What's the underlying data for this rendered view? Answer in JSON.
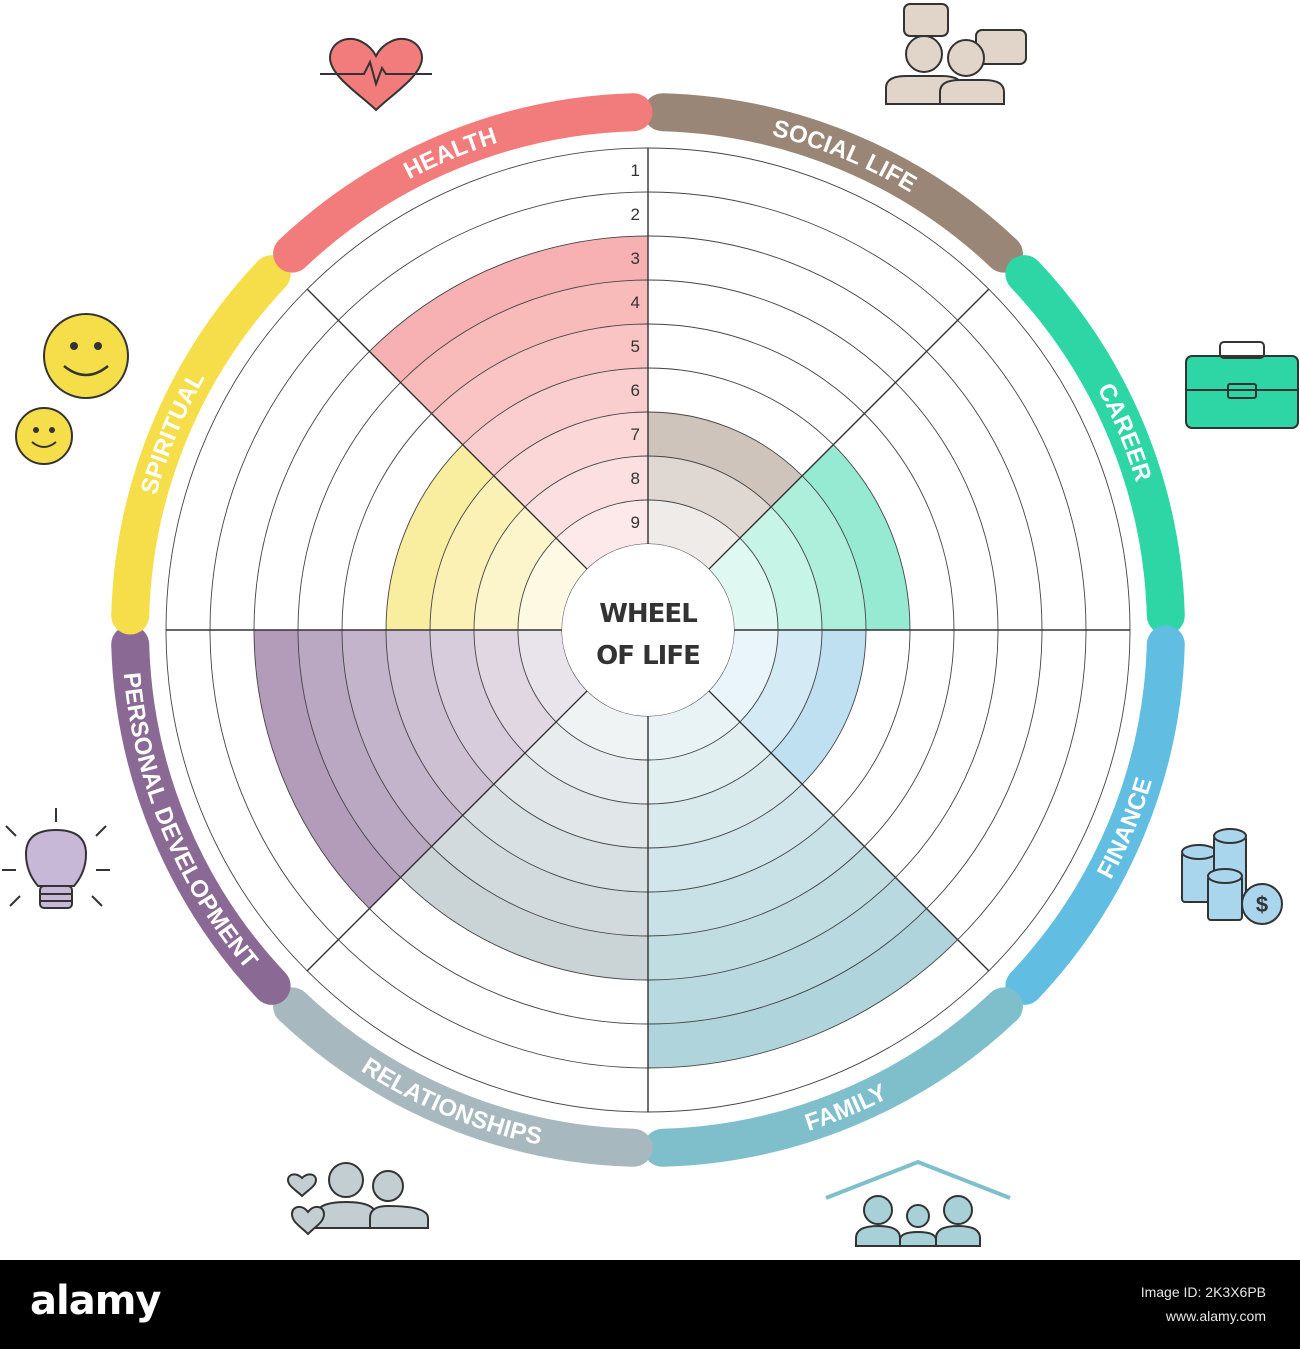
{
  "center_title": [
    "WHEEL",
    "OF LIFE"
  ],
  "scale_numbers": [
    "1",
    "2",
    "3",
    "4",
    "5",
    "6",
    "7",
    "8",
    "9"
  ],
  "segments": [
    {
      "label": "SOCIAL LIFE",
      "color": "#9a8676",
      "fill": "#bdb0a5",
      "score": 7,
      "icon": "people-chat-icon"
    },
    {
      "label": "CAREER",
      "color": "#2ed6a6",
      "fill": "#7ee5c8",
      "score": 6,
      "icon": "briefcase-icon"
    },
    {
      "label": "FINANCE",
      "color": "#62bde3",
      "fill": "#a9d6ec",
      "score": 7,
      "icon": "coins-dollar-icon"
    },
    {
      "label": "FAMILY",
      "color": "#7fbfcc",
      "fill": "#a8d0d7",
      "score": 2,
      "icon": "family-house-icon"
    },
    {
      "label": "RELATIONSHIPS",
      "color": "#a8b8bf",
      "fill": "#c3ced2",
      "score": 4,
      "icon": "couple-hearts-icon"
    },
    {
      "label": "PERSONAL DEVELOPMENT",
      "color": "#8a6a95",
      "fill": "#a890b2",
      "score": 3,
      "icon": "light-bulb-icon"
    },
    {
      "label": "SPIRITUAL",
      "color": "#f5de4a",
      "fill": "#f8e98a",
      "score": 6,
      "icon": "smiley-faces-icon"
    },
    {
      "label": "HEALTH",
      "color": "#f27b7b",
      "fill": "#f7a7a8",
      "score": 3,
      "icon": "heart-pulse-icon"
    }
  ],
  "footer": {
    "brand": "alamy",
    "image_id": "Image ID: 2K3X6PB",
    "site": "www.alamy.com"
  }
}
